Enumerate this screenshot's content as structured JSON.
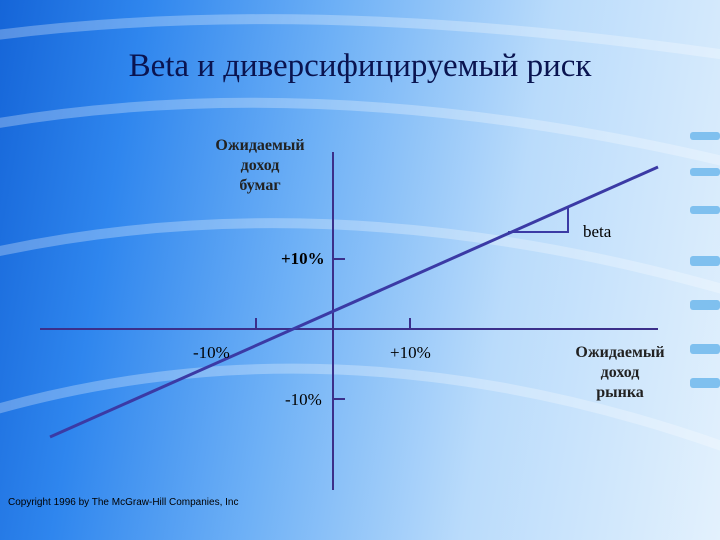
{
  "title": "Beta и диверсифицируемый риск",
  "y_axis_label": "Ожидаемый\nдоход\nбумаг",
  "x_axis_label": "Ожидаемый\nдоход\nрынка",
  "beta_label": "beta",
  "ticks": {
    "y_positive": "+10%",
    "y_negative": "-10%",
    "x_negative": "-10%",
    "x_positive": "+10%"
  },
  "copyright": "Copyright 1996 by The McGraw-Hill Companies, Inc",
  "colors": {
    "axes": "#3b2f8a",
    "line": "#3b3aa5",
    "title": "#0a1450"
  }
}
